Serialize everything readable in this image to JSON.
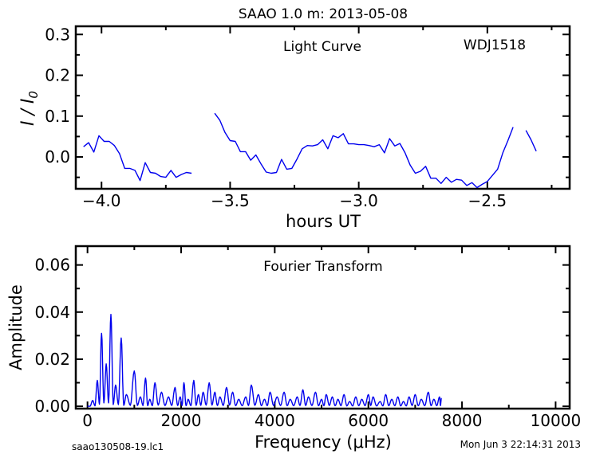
{
  "figure": {
    "title": "SAAO 1.0 m:  2013-05-08",
    "footer_left": "saao130508-19.lc1",
    "footer_right": "Mon Jun  3 22:14:31 2013",
    "line_color": "#0000ee"
  },
  "chart_data": [
    {
      "type": "line",
      "title": "Light Curve",
      "annotation": "WDJ1518",
      "xlabel": "hours UT",
      "ylabel": "I / I0",
      "xlim": [
        -4.1,
        -2.18
      ],
      "ylim": [
        -0.078,
        0.32
      ],
      "xticks": [
        -4.0,
        -3.5,
        -3.0,
        -2.5
      ],
      "xtick_labels": [
        "−4.0",
        "−3.5",
        "−3.0",
        "−2.5"
      ],
      "yticks": [
        0.0,
        0.1,
        0.2,
        0.3
      ],
      "ytick_labels": [
        "0.0",
        "0.1",
        "0.2",
        "0.3"
      ],
      "segments": [
        [
          [
            -4.07,
            0.025
          ],
          [
            -4.05,
            0.035
          ],
          [
            -4.03,
            0.012
          ],
          [
            -4.01,
            0.052
          ],
          [
            -3.99,
            0.038
          ],
          [
            -3.97,
            0.038
          ],
          [
            -3.95,
            0.028
          ],
          [
            -3.93,
            0.008
          ],
          [
            -3.91,
            -0.028
          ],
          [
            -3.89,
            -0.028
          ],
          [
            -3.87,
            -0.033
          ],
          [
            -3.85,
            -0.058
          ],
          [
            -3.83,
            -0.014
          ],
          [
            -3.81,
            -0.038
          ],
          [
            -3.79,
            -0.04
          ],
          [
            -3.77,
            -0.048
          ],
          [
            -3.75,
            -0.05
          ],
          [
            -3.73,
            -0.033
          ],
          [
            -3.71,
            -0.05
          ],
          [
            -3.69,
            -0.043
          ],
          [
            -3.67,
            -0.038
          ],
          [
            -3.65,
            -0.04
          ]
        ],
        [
          [
            -3.56,
            0.107
          ],
          [
            -3.54,
            0.09
          ],
          [
            -3.52,
            0.06
          ],
          [
            -3.5,
            0.04
          ],
          [
            -3.48,
            0.038
          ],
          [
            -3.46,
            0.013
          ],
          [
            -3.44,
            0.013
          ],
          [
            -3.42,
            -0.008
          ],
          [
            -3.4,
            0.005
          ],
          [
            -3.38,
            -0.017
          ],
          [
            -3.36,
            -0.037
          ],
          [
            -3.34,
            -0.04
          ],
          [
            -3.32,
            -0.038
          ],
          [
            -3.3,
            -0.006
          ],
          [
            -3.28,
            -0.03
          ],
          [
            -3.26,
            -0.028
          ],
          [
            -3.24,
            -0.005
          ],
          [
            -3.22,
            0.02
          ],
          [
            -3.2,
            0.028
          ],
          [
            -3.18,
            0.027
          ],
          [
            -3.16,
            0.03
          ],
          [
            -3.14,
            0.042
          ],
          [
            -3.12,
            0.02
          ],
          [
            -3.1,
            0.052
          ],
          [
            -3.08,
            0.047
          ],
          [
            -3.06,
            0.057
          ],
          [
            -3.04,
            0.032
          ],
          [
            -3.02,
            0.032
          ],
          [
            -3.0,
            0.03
          ],
          [
            -2.98,
            0.03
          ],
          [
            -2.96,
            0.028
          ],
          [
            -2.94,
            0.025
          ],
          [
            -2.92,
            0.03
          ],
          [
            -2.9,
            0.01
          ],
          [
            -2.88,
            0.045
          ],
          [
            -2.86,
            0.027
          ],
          [
            -2.84,
            0.033
          ],
          [
            -2.82,
            0.01
          ],
          [
            -2.8,
            -0.02
          ],
          [
            -2.78,
            -0.04
          ],
          [
            -2.76,
            -0.035
          ],
          [
            -2.74,
            -0.023
          ],
          [
            -2.72,
            -0.052
          ],
          [
            -2.7,
            -0.052
          ],
          [
            -2.68,
            -0.065
          ],
          [
            -2.66,
            -0.05
          ],
          [
            -2.64,
            -0.062
          ],
          [
            -2.62,
            -0.055
          ],
          [
            -2.6,
            -0.057
          ],
          [
            -2.58,
            -0.07
          ],
          [
            -2.56,
            -0.063
          ],
          [
            -2.54,
            -0.075
          ],
          [
            -2.52,
            -0.067
          ],
          [
            -2.5,
            -0.06
          ],
          [
            -2.48,
            -0.045
          ],
          [
            -2.46,
            -0.03
          ],
          [
            -2.44,
            0.01
          ],
          [
            -2.42,
            0.04
          ],
          [
            -2.4,
            0.073
          ]
        ],
        [
          [
            -2.35,
            0.065
          ],
          [
            -2.33,
            0.042
          ],
          [
            -2.31,
            0.014
          ]
        ]
      ]
    },
    {
      "type": "line",
      "title": "Fourier Transform",
      "xlabel": "Frequency (μHz)",
      "ylabel": "Amplitude",
      "xlim": [
        -250,
        10300
      ],
      "ylim": [
        -0.001,
        0.068
      ],
      "xticks": [
        0,
        2000,
        4000,
        6000,
        8000,
        10000
      ],
      "xtick_labels": [
        "0",
        "2000",
        "4000",
        "6000",
        "8000",
        "10000"
      ],
      "yticks": [
        0.0,
        0.02,
        0.04,
        0.06
      ],
      "ytick_labels": [
        "0.00",
        "0.02",
        "0.04",
        "0.06"
      ],
      "peaks": [
        [
          0,
          0.0
        ],
        [
          110,
          0.0025
        ],
        [
          210,
          0.011
        ],
        [
          300,
          0.031
        ],
        [
          400,
          0.018
        ],
        [
          500,
          0.039
        ],
        [
          600,
          0.009
        ],
        [
          720,
          0.029
        ],
        [
          830,
          0.005
        ],
        [
          1000,
          0.015
        ],
        [
          1130,
          0.004
        ],
        [
          1240,
          0.012
        ],
        [
          1330,
          0.003
        ],
        [
          1440,
          0.01
        ],
        [
          1580,
          0.006
        ],
        [
          1730,
          0.004
        ],
        [
          1870,
          0.008
        ],
        [
          1980,
          0.004
        ],
        [
          2060,
          0.01
        ],
        [
          2150,
          0.003
        ],
        [
          2270,
          0.011
        ],
        [
          2370,
          0.005
        ],
        [
          2470,
          0.006
        ],
        [
          2600,
          0.01
        ],
        [
          2720,
          0.006
        ],
        [
          2830,
          0.004
        ],
        [
          2970,
          0.008
        ],
        [
          3100,
          0.006
        ],
        [
          3230,
          0.003
        ],
        [
          3380,
          0.004
        ],
        [
          3500,
          0.009
        ],
        [
          3650,
          0.005
        ],
        [
          3780,
          0.003
        ],
        [
          3900,
          0.006
        ],
        [
          4050,
          0.004
        ],
        [
          4200,
          0.006
        ],
        [
          4330,
          0.003
        ],
        [
          4480,
          0.004
        ],
        [
          4600,
          0.007
        ],
        [
          4720,
          0.004
        ],
        [
          4870,
          0.006
        ],
        [
          5000,
          0.003
        ],
        [
          5100,
          0.005
        ],
        [
          5230,
          0.004
        ],
        [
          5350,
          0.003
        ],
        [
          5480,
          0.005
        ],
        [
          5600,
          0.002
        ],
        [
          5730,
          0.004
        ],
        [
          5860,
          0.003
        ],
        [
          6000,
          0.005
        ],
        [
          6100,
          0.004
        ],
        [
          6250,
          0.002
        ],
        [
          6370,
          0.005
        ],
        [
          6500,
          0.003
        ],
        [
          6630,
          0.004
        ],
        [
          6750,
          0.002
        ],
        [
          6870,
          0.004
        ],
        [
          7000,
          0.005
        ],
        [
          7130,
          0.003
        ],
        [
          7280,
          0.006
        ],
        [
          7400,
          0.003
        ],
        [
          7520,
          0.004
        ],
        [
          7560,
          0.0035
        ]
      ]
    }
  ]
}
